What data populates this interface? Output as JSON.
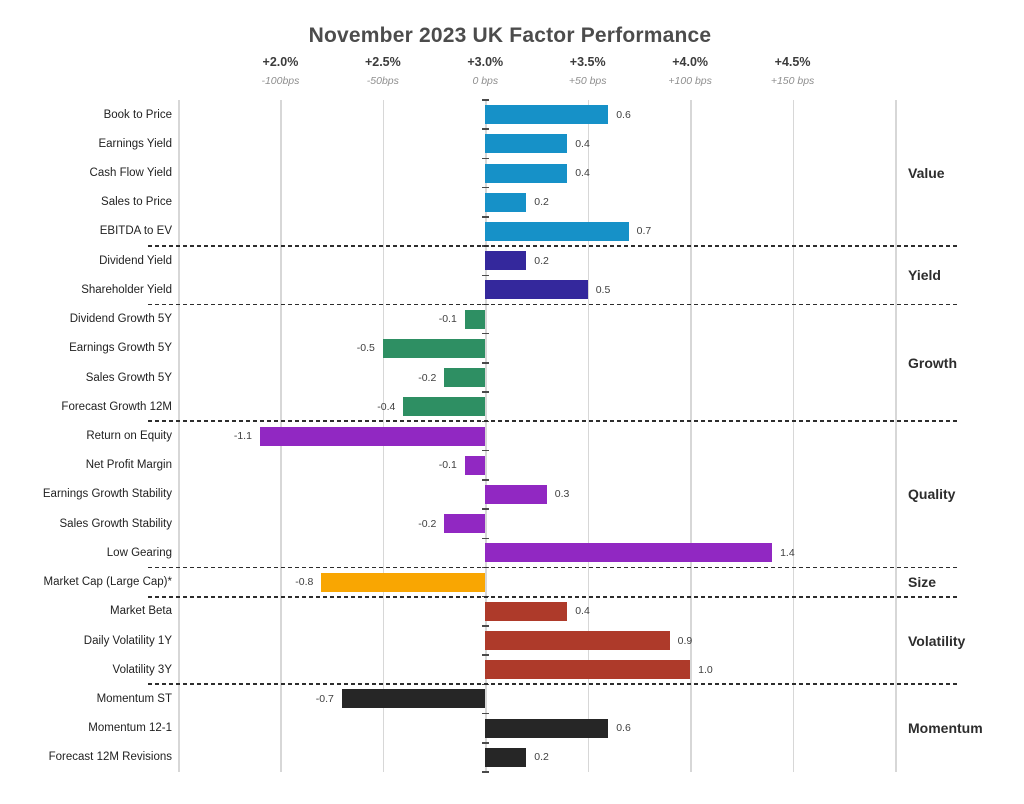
{
  "chart_data": {
    "type": "bar",
    "orientation": "horizontal",
    "title": "November 2023 UK Factor Performance",
    "x_axis": {
      "percent_labels": [
        "+2.0%",
        "+2.5%",
        "+3.0%",
        "+3.5%",
        "+4.0%",
        "+4.5%"
      ],
      "bps_labels": [
        "-100bps",
        "-50bps",
        "0 bps",
        "+50 bps",
        "+100 bps",
        "+150 bps"
      ],
      "xlim_bps": [
        -150,
        200
      ],
      "gridline_step_bps": 50,
      "grid": true,
      "legend": "none"
    },
    "groups": [
      {
        "name": "Value",
        "color": "#1691C8",
        "bars": [
          {
            "label": "Book to Price",
            "value": 0.6
          },
          {
            "label": "Earnings Yield",
            "value": 0.4
          },
          {
            "label": "Cash Flow Yield",
            "value": 0.4
          },
          {
            "label": "Sales to Price",
            "value": 0.2
          },
          {
            "label": "EBITDA to EV",
            "value": 0.7
          }
        ]
      },
      {
        "name": "Yield",
        "color": "#34289C",
        "bars": [
          {
            "label": "Dividend Yield",
            "value": 0.2
          },
          {
            "label": "Shareholder Yield",
            "value": 0.5
          }
        ]
      },
      {
        "name": "Growth",
        "color": "#2E8F63",
        "bars": [
          {
            "label": "Dividend Growth 5Y",
            "value": -0.1
          },
          {
            "label": "Earnings Growth 5Y",
            "value": -0.5
          },
          {
            "label": "Sales Growth 5Y",
            "value": -0.2
          },
          {
            "label": "Forecast Growth 12M",
            "value": -0.4
          }
        ]
      },
      {
        "name": "Quality",
        "color": "#9128C2",
        "bars": [
          {
            "label": "Return on Equity",
            "value": -1.1
          },
          {
            "label": "Net Profit Margin",
            "value": -0.1
          },
          {
            "label": "Earnings Growth Stability",
            "value": 0.3
          },
          {
            "label": "Sales Growth Stability",
            "value": -0.2
          },
          {
            "label": "Low Gearing",
            "value": 1.4
          }
        ]
      },
      {
        "name": "Size",
        "color": "#F9A602",
        "bars": [
          {
            "label": "Market Cap (Large Cap)*",
            "value": -0.8
          }
        ]
      },
      {
        "name": "Volatility",
        "color": "#AE3A2A",
        "bars": [
          {
            "label": "Market Beta",
            "value": 0.4
          },
          {
            "label": "Daily Volatility 1Y",
            "value": 0.9
          },
          {
            "label": "Volatility 3Y",
            "value": 1.0
          }
        ]
      },
      {
        "name": "Momentum",
        "color": "#262626",
        "bars": [
          {
            "label": "Momentum ST",
            "value": -0.7
          },
          {
            "label": "Momentum 12-1",
            "value": 0.6
          },
          {
            "label": "Forecast 12M Revisions",
            "value": 0.2
          }
        ]
      }
    ]
  }
}
